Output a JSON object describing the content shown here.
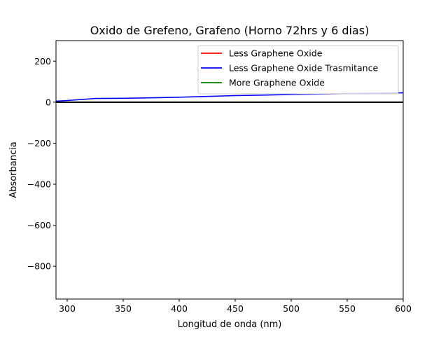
{
  "chart_data": {
    "type": "line",
    "title": "Oxido de Grefeno, Grafeno (Horno 72hrs y 6 dias)",
    "xlabel": "Longitud de onda (nm)",
    "ylabel": "Absorbancia",
    "xlim": [
      290,
      600
    ],
    "ylim": [
      -960,
      300
    ],
    "xticks": [
      300,
      350,
      400,
      450,
      500,
      550,
      600
    ],
    "yticks": [
      200,
      0,
      -200,
      -400,
      -600,
      -800
    ],
    "xtick_labels": [
      "300",
      "350",
      "400",
      "450",
      "500",
      "550",
      "600"
    ],
    "ytick_labels": [
      "200",
      "0",
      "−200",
      "−400",
      "−600",
      "−800"
    ],
    "grid": false,
    "legend_position": "top-right",
    "series": [
      {
        "name": "Less Graphene Oxide",
        "color": "#ff0000",
        "x": [
          290,
          300,
          350,
          400,
          450,
          500,
          550,
          600
        ],
        "y": [
          0,
          0,
          0,
          0,
          0,
          0,
          0,
          0
        ]
      },
      {
        "name": "Less Graphene Oxide Trasmitance",
        "color": "#0000ff",
        "x": [
          290,
          300,
          325,
          350,
          383,
          400,
          450,
          500,
          550,
          600
        ],
        "y": [
          5,
          8,
          18,
          19,
          22,
          24,
          32,
          37,
          42,
          46
        ]
      },
      {
        "name": "More Graphene Oxide",
        "color": "#008000",
        "x": [
          290,
          300,
          350,
          400,
          450,
          500,
          550,
          600
        ],
        "y": [
          0,
          0,
          0,
          0,
          0,
          0,
          0,
          0
        ]
      },
      {
        "name": "",
        "color": "#000000",
        "x": [
          290,
          300,
          350,
          400,
          450,
          500,
          550,
          600
        ],
        "y": [
          0,
          0,
          0,
          0,
          0,
          0,
          0,
          0
        ]
      }
    ]
  }
}
